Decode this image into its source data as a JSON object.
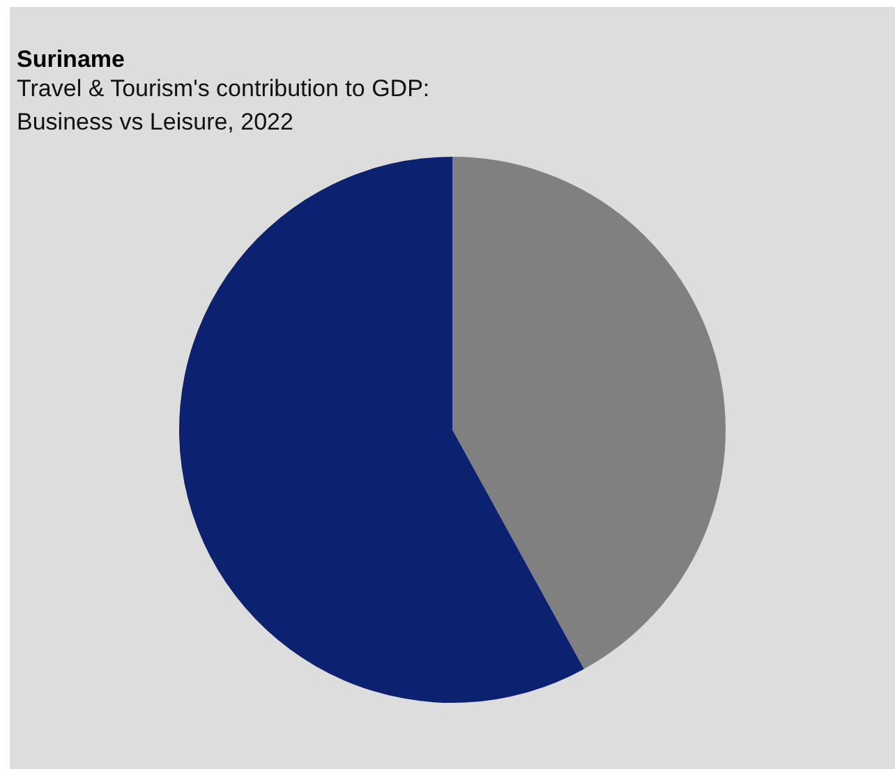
{
  "chart_data": {
    "type": "pie",
    "title": "Suriname",
    "subtitle": "Travel & Tourism's contribution to GDP: Business vs Leisure, 2022",
    "categories": [
      null,
      null
    ],
    "values": [
      42,
      58
    ],
    "colors": [
      "#808080",
      "#0c2270"
    ],
    "legend": false
  }
}
